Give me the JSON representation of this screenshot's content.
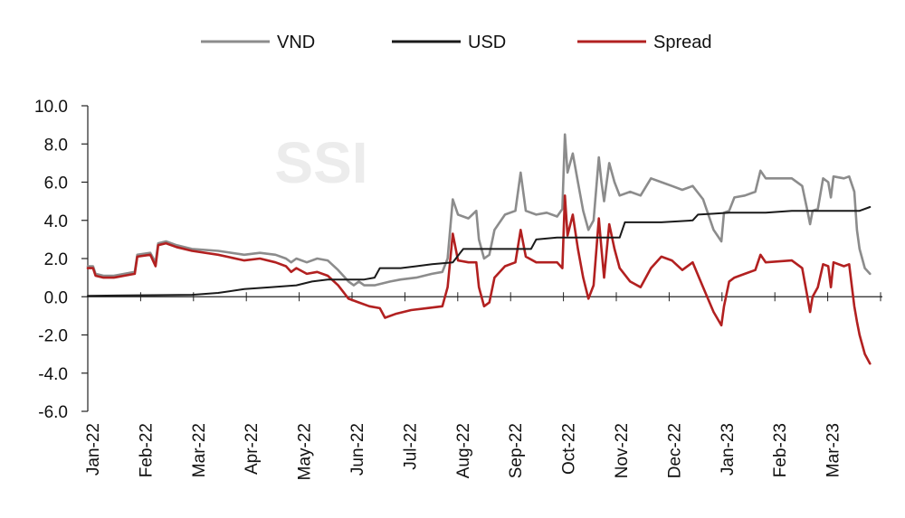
{
  "watermark": "SSI",
  "colors": {
    "VND": "#8c8c8c",
    "USD": "#1a1a1a",
    "Spread": "#b22020"
  },
  "chart_data": {
    "type": "line",
    "ylim": [
      -6.0,
      10.0
    ],
    "yticks": [
      "10.0",
      "8.0",
      "6.0",
      "4.0",
      "2.0",
      "0.0",
      "-2.0",
      "-4.0",
      "-6.0"
    ],
    "ytick_values": [
      10,
      8,
      6,
      4,
      2,
      0,
      -2,
      -4,
      -6
    ],
    "categories": [
      "Jan-22",
      "Feb-22",
      "Mar-22",
      "Apr-22",
      "May-22",
      "Jun-22",
      "Jul-22",
      "Aug-22",
      "Sep-22",
      "Oct-22",
      "Nov-22",
      "Dec-22",
      "Jan-23",
      "Feb-23",
      "Mar-23"
    ],
    "x_end": 14.8,
    "legend_position": "top-center",
    "grid": false,
    "series": [
      {
        "name": "VND",
        "points": [
          [
            0,
            1.6
          ],
          [
            0.1,
            1.6
          ],
          [
            0.15,
            1.2
          ],
          [
            0.3,
            1.1
          ],
          [
            0.5,
            1.1
          ],
          [
            0.7,
            1.2
          ],
          [
            0.9,
            1.3
          ],
          [
            0.95,
            2.2
          ],
          [
            1.2,
            2.3
          ],
          [
            1.3,
            1.8
          ],
          [
            1.35,
            2.8
          ],
          [
            1.5,
            2.9
          ],
          [
            1.7,
            2.7
          ],
          [
            2,
            2.5
          ],
          [
            2.5,
            2.4
          ],
          [
            3,
            2.2
          ],
          [
            3.3,
            2.3
          ],
          [
            3.6,
            2.2
          ],
          [
            3.8,
            2.0
          ],
          [
            3.9,
            1.8
          ],
          [
            4.0,
            2.0
          ],
          [
            4.2,
            1.8
          ],
          [
            4.4,
            2.0
          ],
          [
            4.6,
            1.9
          ],
          [
            4.8,
            1.4
          ],
          [
            5,
            0.8
          ],
          [
            5.1,
            0.6
          ],
          [
            5.2,
            0.8
          ],
          [
            5.3,
            0.6
          ],
          [
            5.5,
            0.6
          ],
          [
            5.8,
            0.8
          ],
          [
            6,
            0.9
          ],
          [
            6.3,
            1.0
          ],
          [
            6.6,
            1.2
          ],
          [
            6.8,
            1.3
          ],
          [
            6.9,
            2.0
          ],
          [
            7.0,
            5.1
          ],
          [
            7.1,
            4.3
          ],
          [
            7.3,
            4.1
          ],
          [
            7.45,
            4.5
          ],
          [
            7.5,
            3.0
          ],
          [
            7.6,
            2.0
          ],
          [
            7.7,
            2.2
          ],
          [
            7.8,
            3.5
          ],
          [
            8,
            4.3
          ],
          [
            8.2,
            4.5
          ],
          [
            8.3,
            6.5
          ],
          [
            8.4,
            4.5
          ],
          [
            8.6,
            4.3
          ],
          [
            8.8,
            4.4
          ],
          [
            9.0,
            4.2
          ],
          [
            9.1,
            4.6
          ],
          [
            9.15,
            8.5
          ],
          [
            9.2,
            6.5
          ],
          [
            9.3,
            7.5
          ],
          [
            9.4,
            6.0
          ],
          [
            9.5,
            4.5
          ],
          [
            9.6,
            3.5
          ],
          [
            9.7,
            4.0
          ],
          [
            9.8,
            7.3
          ],
          [
            9.85,
            6.0
          ],
          [
            9.9,
            5.0
          ],
          [
            10.0,
            7.0
          ],
          [
            10.1,
            6.0
          ],
          [
            10.2,
            5.3
          ],
          [
            10.4,
            5.5
          ],
          [
            10.6,
            5.3
          ],
          [
            10.8,
            6.2
          ],
          [
            11,
            6.0
          ],
          [
            11.2,
            5.8
          ],
          [
            11.4,
            5.6
          ],
          [
            11.6,
            5.8
          ],
          [
            11.8,
            5.1
          ],
          [
            12.0,
            3.5
          ],
          [
            12.15,
            2.9
          ],
          [
            12.2,
            4.4
          ],
          [
            12.3,
            4.5
          ],
          [
            12.4,
            5.2
          ],
          [
            12.6,
            5.3
          ],
          [
            12.8,
            5.5
          ],
          [
            12.9,
            6.6
          ],
          [
            13.0,
            6.2
          ],
          [
            13.5,
            6.2
          ],
          [
            13.7,
            5.8
          ],
          [
            13.8,
            4.5
          ],
          [
            13.85,
            3.8
          ],
          [
            13.9,
            4.5
          ],
          [
            14.0,
            4.6
          ],
          [
            14.1,
            6.2
          ],
          [
            14.2,
            6.0
          ],
          [
            14.25,
            5.2
          ],
          [
            14.3,
            6.3
          ],
          [
            14.5,
            6.2
          ],
          [
            14.6,
            6.3
          ],
          [
            14.7,
            5.5
          ],
          [
            14.75,
            3.5
          ],
          [
            14.8,
            2.5
          ],
          [
            14.9,
            1.5
          ],
          [
            15.0,
            1.2
          ]
        ]
      },
      {
        "name": "USD",
        "points": [
          [
            0,
            0.05
          ],
          [
            2,
            0.1
          ],
          [
            2.5,
            0.2
          ],
          [
            3,
            0.4
          ],
          [
            3.5,
            0.5
          ],
          [
            4,
            0.6
          ],
          [
            4.3,
            0.8
          ],
          [
            4.6,
            0.9
          ],
          [
            5.3,
            0.9
          ],
          [
            5.5,
            1.0
          ],
          [
            5.6,
            1.5
          ],
          [
            6,
            1.5
          ],
          [
            6.3,
            1.6
          ],
          [
            6.6,
            1.7
          ],
          [
            7,
            1.8
          ],
          [
            7.2,
            2.5
          ],
          [
            8.5,
            2.5
          ],
          [
            8.6,
            3.0
          ],
          [
            9.0,
            3.1
          ],
          [
            10.2,
            3.1
          ],
          [
            10.3,
            3.9
          ],
          [
            11,
            3.9
          ],
          [
            11.6,
            4.0
          ],
          [
            11.7,
            4.3
          ],
          [
            12,
            4.35
          ],
          [
            12.3,
            4.4
          ],
          [
            13,
            4.4
          ],
          [
            13.5,
            4.5
          ],
          [
            14.3,
            4.5
          ],
          [
            14.8,
            4.5
          ],
          [
            15,
            4.7
          ]
        ]
      },
      {
        "name": "Spread",
        "points": [
          [
            0,
            1.5
          ],
          [
            0.1,
            1.5
          ],
          [
            0.15,
            1.1
          ],
          [
            0.3,
            1.0
          ],
          [
            0.5,
            1.0
          ],
          [
            0.7,
            1.1
          ],
          [
            0.9,
            1.2
          ],
          [
            0.95,
            2.1
          ],
          [
            1.2,
            2.2
          ],
          [
            1.3,
            1.6
          ],
          [
            1.35,
            2.7
          ],
          [
            1.5,
            2.8
          ],
          [
            1.7,
            2.6
          ],
          [
            2,
            2.4
          ],
          [
            2.5,
            2.2
          ],
          [
            3,
            1.9
          ],
          [
            3.3,
            2.0
          ],
          [
            3.6,
            1.8
          ],
          [
            3.8,
            1.6
          ],
          [
            3.9,
            1.3
          ],
          [
            4.0,
            1.5
          ],
          [
            4.2,
            1.2
          ],
          [
            4.4,
            1.3
          ],
          [
            4.6,
            1.1
          ],
          [
            4.8,
            0.6
          ],
          [
            5.0,
            -0.1
          ],
          [
            5.2,
            -0.3
          ],
          [
            5.4,
            -0.5
          ],
          [
            5.6,
            -0.6
          ],
          [
            5.7,
            -1.1
          ],
          [
            5.9,
            -0.9
          ],
          [
            6.2,
            -0.7
          ],
          [
            6.5,
            -0.6
          ],
          [
            6.8,
            -0.5
          ],
          [
            6.9,
            0.5
          ],
          [
            7.0,
            3.3
          ],
          [
            7.1,
            1.9
          ],
          [
            7.3,
            1.8
          ],
          [
            7.45,
            1.8
          ],
          [
            7.5,
            0.5
          ],
          [
            7.6,
            -0.5
          ],
          [
            7.7,
            -0.3
          ],
          [
            7.8,
            1.0
          ],
          [
            8.0,
            1.6
          ],
          [
            8.2,
            1.8
          ],
          [
            8.3,
            3.5
          ],
          [
            8.4,
            2.1
          ],
          [
            8.6,
            1.8
          ],
          [
            8.8,
            1.8
          ],
          [
            9.0,
            1.8
          ],
          [
            9.1,
            1.5
          ],
          [
            9.15,
            5.3
          ],
          [
            9.2,
            3.2
          ],
          [
            9.3,
            4.3
          ],
          [
            9.4,
            2.5
          ],
          [
            9.5,
            1.0
          ],
          [
            9.6,
            -0.1
          ],
          [
            9.7,
            0.6
          ],
          [
            9.8,
            4.1
          ],
          [
            9.85,
            2.5
          ],
          [
            9.9,
            1.0
          ],
          [
            10.0,
            3.8
          ],
          [
            10.1,
            2.5
          ],
          [
            10.2,
            1.5
          ],
          [
            10.4,
            0.8
          ],
          [
            10.6,
            0.5
          ],
          [
            10.8,
            1.5
          ],
          [
            11,
            2.1
          ],
          [
            11.2,
            1.9
          ],
          [
            11.4,
            1.4
          ],
          [
            11.6,
            1.8
          ],
          [
            11.8,
            0.5
          ],
          [
            12.0,
            -0.8
          ],
          [
            12.15,
            -1.5
          ],
          [
            12.2,
            -0.5
          ],
          [
            12.3,
            0.8
          ],
          [
            12.4,
            1.0
          ],
          [
            12.6,
            1.2
          ],
          [
            12.8,
            1.4
          ],
          [
            12.9,
            2.2
          ],
          [
            13.0,
            1.8
          ],
          [
            13.5,
            1.9
          ],
          [
            13.7,
            1.5
          ],
          [
            13.8,
            0.0
          ],
          [
            13.85,
            -0.8
          ],
          [
            13.9,
            0.0
          ],
          [
            14.0,
            0.5
          ],
          [
            14.1,
            1.7
          ],
          [
            14.2,
            1.6
          ],
          [
            14.25,
            0.5
          ],
          [
            14.3,
            1.8
          ],
          [
            14.5,
            1.6
          ],
          [
            14.6,
            1.7
          ],
          [
            14.7,
            -0.5
          ],
          [
            14.75,
            -1.3
          ],
          [
            14.8,
            -2.0
          ],
          [
            14.9,
            -3.0
          ],
          [
            15.0,
            -3.5
          ]
        ]
      }
    ]
  }
}
